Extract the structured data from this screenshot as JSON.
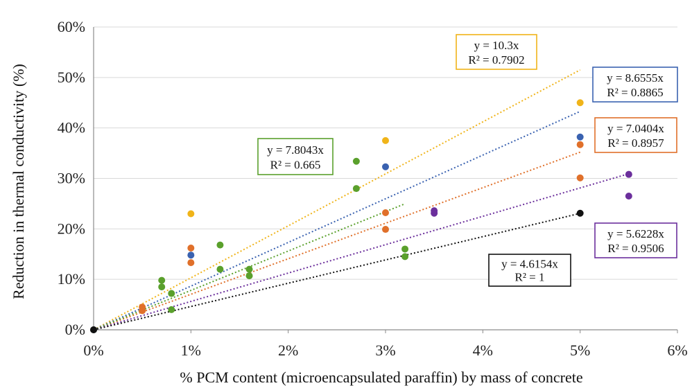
{
  "chart_data": {
    "type": "scatter",
    "title": "",
    "xlabel": "% PCM content (microencapsulated paraffin) by mass of concrete",
    "ylabel": "Reduction in thermal conductivity (%)",
    "xlim": [
      0,
      6
    ],
    "ylim": [
      0,
      60
    ],
    "x_ticks": [
      "0%",
      "1%",
      "2%",
      "3%",
      "4%",
      "5%",
      "6%"
    ],
    "y_ticks": [
      "0%",
      "10%",
      "20%",
      "30%",
      "40%",
      "50%",
      "60%"
    ],
    "grid": "horizontal",
    "series": [
      {
        "color": "#f0b419",
        "points": [
          [
            0,
            0
          ],
          [
            1,
            23
          ],
          [
            3,
            37.5
          ],
          [
            5,
            45
          ]
        ],
        "trend_slope": 10.3,
        "trend_xmax": 5,
        "equation": "y = 10.3x",
        "r2": "R² = 0.7902"
      },
      {
        "color": "#3a62b0",
        "points": [
          [
            0,
            0
          ],
          [
            1,
            14.8
          ],
          [
            3,
            32.3
          ],
          [
            5,
            38.2
          ]
        ],
        "trend_slope": 8.6555,
        "trend_xmax": 5,
        "equation": "y = 8.6555x",
        "r2": "R² = 0.8865"
      },
      {
        "color": "#e0702a",
        "points": [
          [
            0.5,
            4.5
          ],
          [
            0.5,
            3.8
          ],
          [
            1,
            16.2
          ],
          [
            1,
            13.3
          ],
          [
            3,
            23.2
          ],
          [
            3,
            19.9
          ],
          [
            5,
            36.7
          ],
          [
            5,
            30.1
          ]
        ],
        "trend_slope": 7.0404,
        "trend_xmax": 5,
        "equation": "y = 7.0404x",
        "r2": "R² = 0.8957"
      },
      {
        "color": "#5aa02c",
        "points": [
          [
            0.7,
            9.8
          ],
          [
            0.7,
            8.5
          ],
          [
            0.8,
            7.2
          ],
          [
            0.8,
            4
          ],
          [
            1.3,
            16.8
          ],
          [
            1.3,
            12
          ],
          [
            1.6,
            12
          ],
          [
            1.6,
            10.7
          ],
          [
            2.7,
            33.4
          ],
          [
            2.7,
            28
          ],
          [
            3.2,
            16
          ],
          [
            3.2,
            14.5
          ]
        ],
        "trend_slope": 7.8043,
        "trend_xmax": 3.2,
        "equation": "y = 7.8043x",
        "r2": "R² = 0.665"
      },
      {
        "color": "#6b2f9c",
        "points": [
          [
            3.5,
            23.6
          ],
          [
            3.5,
            23.1
          ],
          [
            5.5,
            30.8
          ],
          [
            5.5,
            26.5
          ]
        ],
        "trend_slope": 5.6228,
        "trend_xmax": 5.5,
        "equation": "y = 5.6228x",
        "r2": "R² = 0.9506"
      },
      {
        "color": "#111111",
        "points": [
          [
            0,
            0
          ],
          [
            5,
            23.1
          ]
        ],
        "trend_slope": 4.6154,
        "trend_xmax": 5,
        "equation": "y = 4.6154x",
        "r2": "R² = 1"
      }
    ]
  }
}
